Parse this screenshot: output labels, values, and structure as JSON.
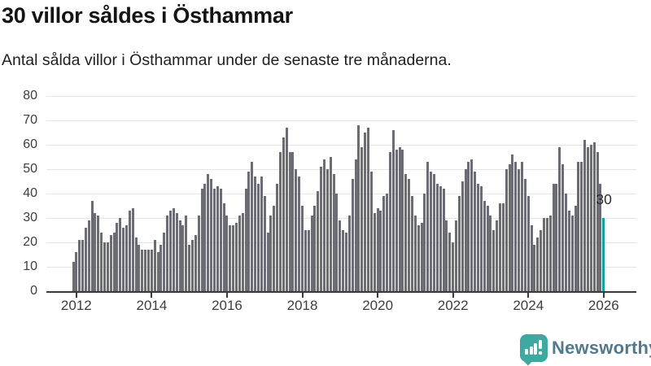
{
  "header": {
    "title": "30 villor såldes i Östhammar",
    "subtitle": "Antal sålda villor i Östhammar under de senaste tre månaderna."
  },
  "chart_data": {
    "type": "bar",
    "title": "30 villor såldes i Östhammar",
    "subtitle": "Antal sålda villor i Östhammar under de senaste tre månaderna.",
    "frequency": "monthly",
    "x_start": "2011-12",
    "x_end": "2026-01",
    "ylim": [
      0,
      80
    ],
    "yticks": [
      0,
      10,
      20,
      30,
      40,
      50,
      60,
      70,
      80
    ],
    "xtick_labels": [
      "2012",
      "2014",
      "2016",
      "2018",
      "2020",
      "2022",
      "2024",
      "2026"
    ],
    "xtick_month_indices": [
      1,
      25,
      49,
      73,
      97,
      121,
      145,
      169
    ],
    "grid": true,
    "bar_color": "#6c6c74",
    "highlight_color": "#12a3a1",
    "values": [
      12,
      16,
      21,
      21,
      26,
      29,
      37,
      32,
      31,
      24,
      20,
      20,
      23,
      24,
      28,
      30,
      26,
      27,
      33,
      34,
      22,
      19,
      17,
      17,
      17,
      17,
      21,
      16,
      19,
      24,
      31,
      33,
      34,
      32,
      29,
      27,
      31,
      19,
      21,
      23,
      31,
      42,
      44,
      48,
      46,
      42,
      43,
      42,
      36,
      31,
      27,
      27,
      28,
      31,
      32,
      42,
      49,
      53,
      47,
      44,
      47,
      39,
      24,
      31,
      35,
      44,
      57,
      63,
      67,
      57,
      57,
      50,
      47,
      35,
      25,
      25,
      31,
      35,
      41,
      51,
      54,
      50,
      55,
      48,
      40,
      29,
      25,
      24,
      31,
      46,
      54,
      68,
      59,
      65,
      67,
      49,
      32,
      34,
      33,
      39,
      40,
      57,
      66,
      58,
      59,
      58,
      48,
      46,
      39,
      31,
      27,
      28,
      40,
      53,
      49,
      48,
      44,
      43,
      42,
      29,
      24,
      20,
      29,
      39,
      45,
      50,
      53,
      54,
      49,
      44,
      43,
      37,
      35,
      31,
      25,
      29,
      36,
      36,
      50,
      52,
      56,
      53,
      50,
      53,
      46,
      39,
      27,
      19,
      22,
      25,
      30,
      30,
      31,
      44,
      44,
      59,
      52,
      40,
      33,
      31,
      35,
      53,
      53,
      62,
      59,
      60,
      61,
      57,
      44,
      30
    ],
    "highlight_index": 169,
    "annotation": {
      "text": "30",
      "value": 30
    }
  },
  "footer": {
    "brand": "Newsworthy",
    "brand_color": "#517b8c",
    "icon_color": "#3ea8a1"
  }
}
